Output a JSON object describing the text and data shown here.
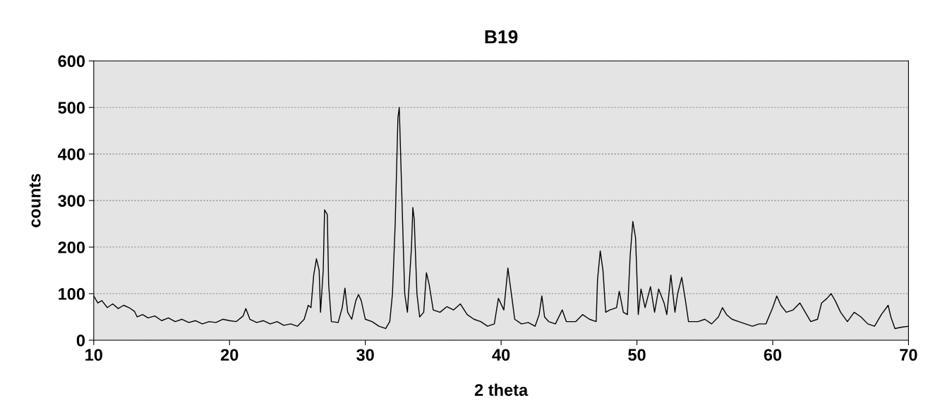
{
  "chart_data": {
    "type": "line",
    "title": "B19",
    "xlabel": "2 theta",
    "ylabel": "counts",
    "xlim": [
      10,
      70
    ],
    "xticks": [
      10,
      20,
      30,
      40,
      50,
      60,
      70
    ],
    "ylim": [
      0,
      600
    ],
    "yticks": [
      0,
      100,
      200,
      300,
      400,
      500,
      600
    ],
    "grid": "y",
    "marker": "none",
    "line_style": "solid",
    "series": [
      {
        "color": "#000000",
        "x": [
          10,
          10.3,
          10.6,
          11,
          11.4,
          11.8,
          12.2,
          12.6,
          13,
          13.2,
          13.6,
          14,
          14.5,
          15,
          15.5,
          16,
          16.5,
          17,
          17.5,
          18,
          18.5,
          19,
          19.5,
          20,
          20.5,
          21,
          21.2,
          21.5,
          22,
          22.5,
          23,
          23.5,
          24,
          24.5,
          25,
          25.5,
          25.8,
          26,
          26.2,
          26.4,
          26.6,
          26.7,
          26.9,
          27.0,
          27.2,
          27.3,
          27.5,
          28,
          28.3,
          28.5,
          28.7,
          29,
          29.3,
          29.5,
          29.7,
          30,
          30.5,
          31,
          31.5,
          31.8,
          32,
          32.2,
          32.4,
          32.5,
          32.7,
          32.9,
          33.1,
          33.4,
          33.5,
          33.6,
          33.8,
          34,
          34.3,
          34.5,
          34.7,
          35,
          35.5,
          36,
          36.5,
          37,
          37.5,
          38,
          38.5,
          39,
          39.5,
          39.8,
          40.2,
          40.5,
          40.8,
          41,
          41.5,
          42,
          42.5,
          42.8,
          43,
          43.2,
          43.5,
          44,
          44.5,
          44.8,
          45.5,
          46,
          46.5,
          47,
          47.1,
          47.3,
          47.5,
          47.7,
          48,
          48.5,
          48.7,
          49,
          49.3,
          49.5,
          49.7,
          49.9,
          50.1,
          50.3,
          50.6,
          51,
          51.3,
          51.6,
          52,
          52.2,
          52.5,
          52.8,
          53,
          53.3,
          53.6,
          53.8,
          54.5,
          55,
          55.5,
          56,
          56.3,
          56.6,
          57,
          57.5,
          58,
          58.5,
          59,
          59.5,
          60,
          60.3,
          60.6,
          61,
          61.5,
          62,
          62.3,
          62.8,
          63.3,
          63.6,
          64,
          64.3,
          64.6,
          65,
          65.5,
          66,
          66.5,
          67,
          67.5,
          68,
          68.5,
          68.7,
          69,
          69.5,
          70
        ],
        "values": [
          95,
          80,
          85,
          70,
          78,
          68,
          75,
          70,
          62,
          50,
          55,
          48,
          52,
          42,
          48,
          40,
          45,
          38,
          42,
          35,
          40,
          38,
          45,
          42,
          40,
          52,
          68,
          45,
          38,
          42,
          35,
          40,
          32,
          35,
          30,
          45,
          75,
          70,
          140,
          175,
          150,
          60,
          150,
          280,
          270,
          120,
          40,
          38,
          70,
          112,
          60,
          45,
          85,
          98,
          85,
          45,
          40,
          30,
          25,
          40,
          100,
          250,
          478,
          500,
          300,
          100,
          60,
          200,
          285,
          260,
          100,
          50,
          60,
          145,
          120,
          65,
          60,
          72,
          65,
          78,
          55,
          45,
          40,
          30,
          35,
          90,
          65,
          155,
          90,
          45,
          35,
          38,
          30,
          55,
          95,
          50,
          40,
          35,
          65,
          40,
          40,
          55,
          45,
          40,
          130,
          192,
          150,
          60,
          65,
          70,
          105,
          60,
          55,
          180,
          255,
          220,
          55,
          110,
          70,
          115,
          60,
          110,
          80,
          55,
          140,
          60,
          100,
          135,
          80,
          40,
          40,
          45,
          35,
          50,
          70,
          55,
          45,
          40,
          35,
          30,
          35,
          35,
          70,
          95,
          75,
          60,
          65,
          80,
          65,
          40,
          45,
          80,
          90,
          100,
          85,
          60,
          40,
          60,
          50,
          35,
          30,
          55,
          75,
          50,
          25,
          28,
          30
        ]
      }
    ]
  }
}
